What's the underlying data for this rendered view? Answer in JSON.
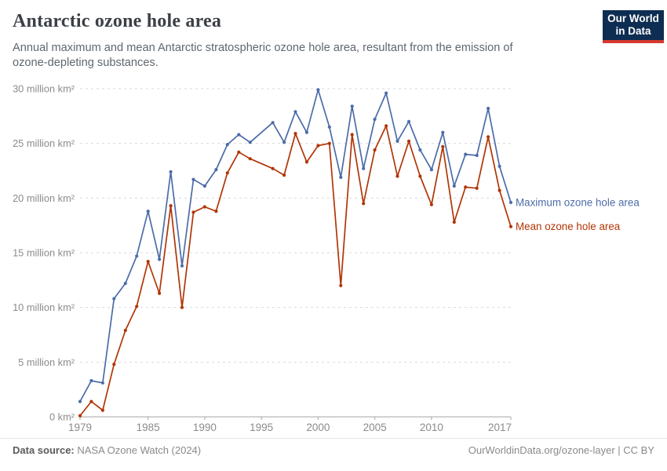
{
  "header": {
    "title": "Antarctic ozone hole area",
    "subtitle": "Annual maximum and mean Antarctic stratospheric ozone hole area, resultant from the emission of ozone-depleting substances.",
    "logo": {
      "line1": "Our World",
      "line2": "in Data",
      "bg_color": "#0e2d52",
      "accent_color": "#d6392f"
    }
  },
  "footer": {
    "source_label": "Data source:",
    "source_value": " NASA Ozone Watch (2024)",
    "right_text": "OurWorldinData.org/ozone-layer | CC BY"
  },
  "chart_data": {
    "type": "line",
    "title": "Antarctic ozone hole area",
    "unit": "million km²",
    "x": [
      1979,
      1980,
      1981,
      1982,
      1983,
      1984,
      1985,
      1986,
      1987,
      1988,
      1989,
      1990,
      1991,
      1992,
      1993,
      1994,
      1995,
      1996,
      1997,
      1998,
      1999,
      2000,
      2001,
      2002,
      2003,
      2004,
      2005,
      2006,
      2007,
      2008,
      2009,
      2010,
      2011,
      2012,
      2013,
      2014,
      2015,
      2016,
      2017
    ],
    "series": [
      {
        "name": "Maximum ozone hole area",
        "color": "#4C6CA8",
        "values": [
          1.4,
          3.3,
          3.1,
          10.8,
          12.2,
          14.7,
          18.8,
          14.4,
          22.4,
          13.8,
          21.7,
          21.1,
          22.6,
          24.9,
          25.8,
          25.1,
          null,
          26.9,
          25.1,
          27.9,
          26.0,
          29.9,
          26.5,
          21.9,
          28.4,
          22.7,
          27.2,
          29.6,
          25.2,
          27.0,
          24.4,
          22.6,
          26.0,
          21.1,
          24.0,
          23.9,
          28.2,
          22.9,
          19.6
        ]
      },
      {
        "name": "Mean ozone hole area",
        "color": "#B13507",
        "values": [
          0.1,
          1.4,
          0.6,
          4.8,
          7.9,
          10.1,
          14.2,
          11.3,
          19.3,
          10.0,
          18.7,
          19.2,
          18.8,
          22.3,
          24.2,
          23.6,
          null,
          22.7,
          22.1,
          25.9,
          23.3,
          24.8,
          25.0,
          12.0,
          25.8,
          19.5,
          24.4,
          26.6,
          22.0,
          25.2,
          22.0,
          19.4,
          24.7,
          17.8,
          21.0,
          20.9,
          25.6,
          20.7,
          17.4
        ]
      }
    ],
    "xlim": [
      1979,
      2017
    ],
    "ylim": [
      0,
      30
    ],
    "x_ticks": [
      1979,
      1985,
      1990,
      1995,
      2000,
      2005,
      2010,
      2017
    ],
    "y_ticks": [
      {
        "value": 0,
        "label": "0 km²"
      },
      {
        "value": 5,
        "label": "5 million km²"
      },
      {
        "value": 10,
        "label": "10 million km²"
      },
      {
        "value": 15,
        "label": "15 million km²"
      },
      {
        "value": 20,
        "label": "20 million km²"
      },
      {
        "value": 25,
        "label": "25 million km²"
      },
      {
        "value": 30,
        "label": "30 million km²"
      }
    ],
    "grid": "horizontal-dashed",
    "legend_position": "end-of-line-labels"
  }
}
